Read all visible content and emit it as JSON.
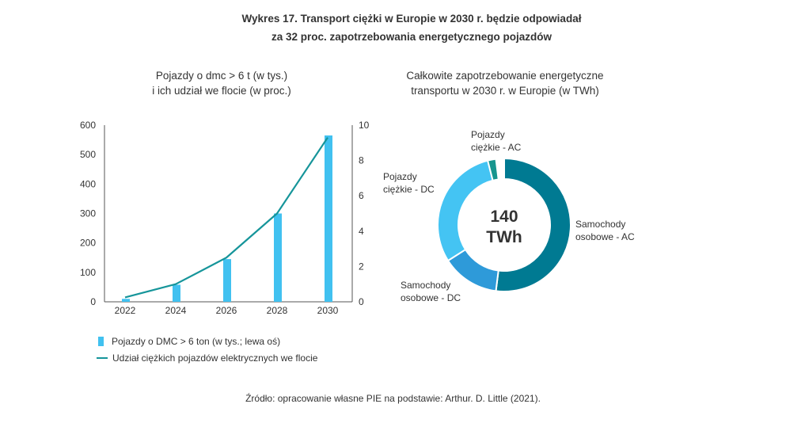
{
  "title": {
    "line1": "Wykres 17.  Transport ciężki w Europie w 2030 r. będzie odpowiadał",
    "line2": "za 32 proc. zapotrzebowania energetycznego pojazdów"
  },
  "source": "Źródło: opracowanie własne PIE na podstawie: Arthur. D. Little (2021).",
  "chart_data": [
    {
      "type": "bar",
      "title_lines": [
        "Pojazdy o dmc > 6 t (w tys.)",
        "i ich udział we flocie (w proc.)"
      ],
      "categories": [
        "2022",
        "2024",
        "2026",
        "2028",
        "2030"
      ],
      "series": [
        {
          "name": "Pojazdy o DMC > 6 ton (w tys.; lewa oś)",
          "kind": "bar",
          "axis": "left",
          "values": [
            10,
            58,
            145,
            300,
            565
          ],
          "color": "#41c1f0"
        },
        {
          "name": "Udział ciężkich pojazdów elektrycznych we flocie",
          "kind": "line",
          "axis": "right",
          "values": [
            0.25,
            1.0,
            2.5,
            5.0,
            9.3
          ],
          "color": "#16959a"
        }
      ],
      "ylim_left": [
        0,
        600
      ],
      "yticks_left": [
        "0",
        "100",
        "200",
        "300",
        "400",
        "500",
        "600"
      ],
      "ylim_right": [
        0,
        10
      ],
      "yticks_right": [
        "0",
        "2",
        "4",
        "6",
        "8",
        "10"
      ],
      "grid": false,
      "legend": "bottom"
    },
    {
      "type": "pie",
      "donut": true,
      "title_lines": [
        "Całkowite zapotrzebowanie energetyczne",
        "transportu w 2030 r. w Europie (w TWh)"
      ],
      "center_label": [
        "140",
        "TWh"
      ],
      "slices": [
        {
          "label": [
            "Samochody",
            "osobowe - AC"
          ],
          "share": 0.52,
          "color": "#007a92"
        },
        {
          "label": [
            "Samochody",
            "osobowe - DC"
          ],
          "share": 0.14,
          "color": "#2e9ad9"
        },
        {
          "label": [
            "Pojazdy",
            "ciężkie - DC"
          ],
          "share": 0.3,
          "color": "#44c4f3"
        },
        {
          "label": [
            "Pojazdy",
            "ciężkie - AC"
          ],
          "share": 0.02,
          "color": "#17958e"
        }
      ]
    }
  ]
}
